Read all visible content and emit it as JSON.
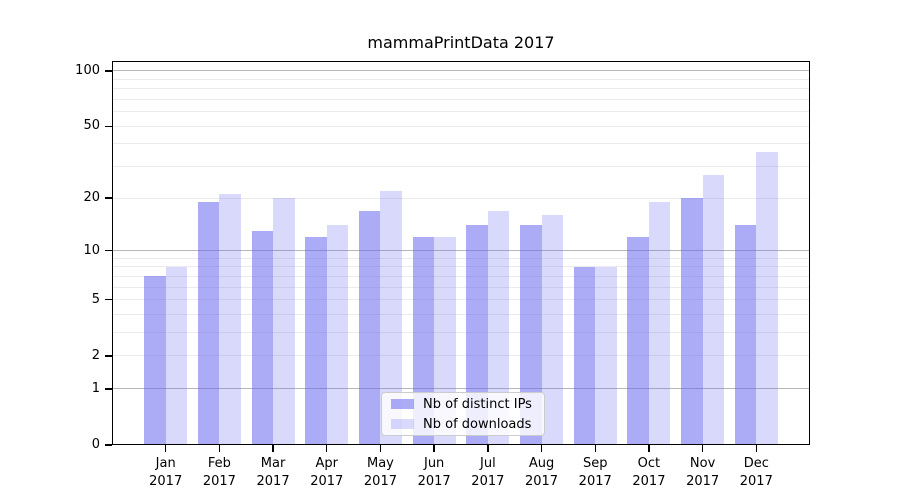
{
  "title": "mammaPrintData 2017",
  "chart_data": {
    "type": "bar",
    "title": "mammaPrintData 2017",
    "categories": [
      "Jan",
      "Feb",
      "Mar",
      "Apr",
      "May",
      "Jun",
      "Jul",
      "Aug",
      "Sep",
      "Oct",
      "Nov",
      "Dec"
    ],
    "x_year": "2017",
    "series": [
      {
        "name": "Nb of distinct IPs",
        "color": "#6666EE",
        "alpha": 0.55,
        "values": [
          7,
          19,
          13,
          12,
          17,
          12,
          14,
          14,
          8,
          12,
          20,
          14
        ]
      },
      {
        "name": "Nb of downloads",
        "color": "#6666EE",
        "alpha": 0.25,
        "values": [
          8,
          21,
          20,
          14,
          22,
          12,
          17,
          16,
          8,
          19,
          27,
          36
        ]
      }
    ],
    "yscale": "log1p",
    "ylim": [
      0,
      113
    ],
    "y_ticks": [
      0,
      1,
      2,
      5,
      10,
      20,
      50,
      100
    ],
    "gridlines": {
      "major": [
        1,
        10,
        100
      ],
      "minor": [
        2,
        3,
        4,
        5,
        6,
        7,
        8,
        9,
        20,
        30,
        40,
        50,
        60,
        70,
        80,
        90
      ]
    },
    "grid": true,
    "legend_position": "lower-center",
    "colors": {
      "bar_dark": "#AAAAF3",
      "bar_light": "#D9D9FA",
      "major_grid": "#B7B7B7",
      "minor_grid": "#EBEBEB",
      "axis": "#000000"
    }
  }
}
